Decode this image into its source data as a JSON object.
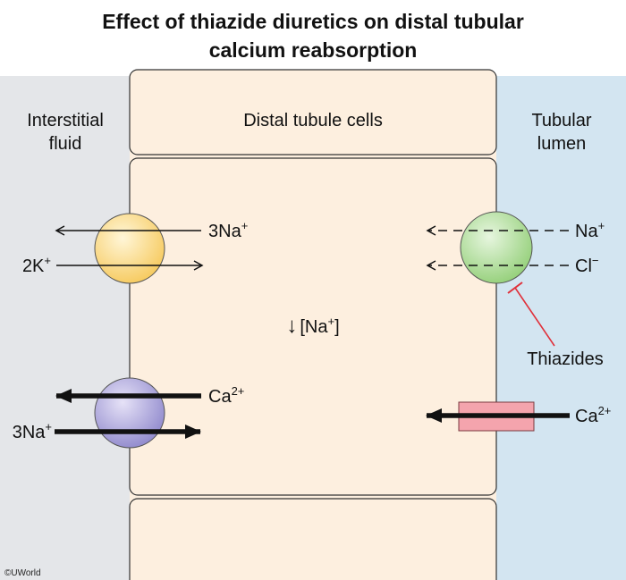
{
  "title": {
    "line1": "Effect of thiazide diuretics on distal tubular",
    "line2": "calcium reabsorption"
  },
  "regions": {
    "interstitial": {
      "line1": "Interstitial",
      "line2": "fluid"
    },
    "cells": "Distal tubule cells",
    "lumen": {
      "line1": "Tubular",
      "line2": "lumen"
    }
  },
  "pump": {
    "na": "3Na",
    "na_sup": "+",
    "k": "2K",
    "k_sup": "+"
  },
  "exchanger": {
    "ca": "Ca",
    "ca_sup": "2+",
    "na": "3Na",
    "na_sup": "+"
  },
  "intracellular": {
    "arrow": "↓",
    "text": "[Na",
    "sup": "+",
    "close": "]"
  },
  "cotransporter": {
    "na": "Na",
    "na_sup": "+",
    "cl": "Cl",
    "cl_sup": "−"
  },
  "channel": {
    "ca": "Ca",
    "ca_sup": "2+"
  },
  "drug": "Thiazides",
  "copyright": "©UWorld",
  "colors": {
    "interstitial_bg": "#e4e6e9",
    "cell_fill": "#fdefdf",
    "lumen_bg": "#d3e5f1",
    "pump_fill": "#fad88a",
    "exchanger_fill": "#a9a3da",
    "cotransporter_fill": "#aedc98",
    "channel_fill": "#f4a4ad",
    "inhibition": "#e0303a"
  }
}
